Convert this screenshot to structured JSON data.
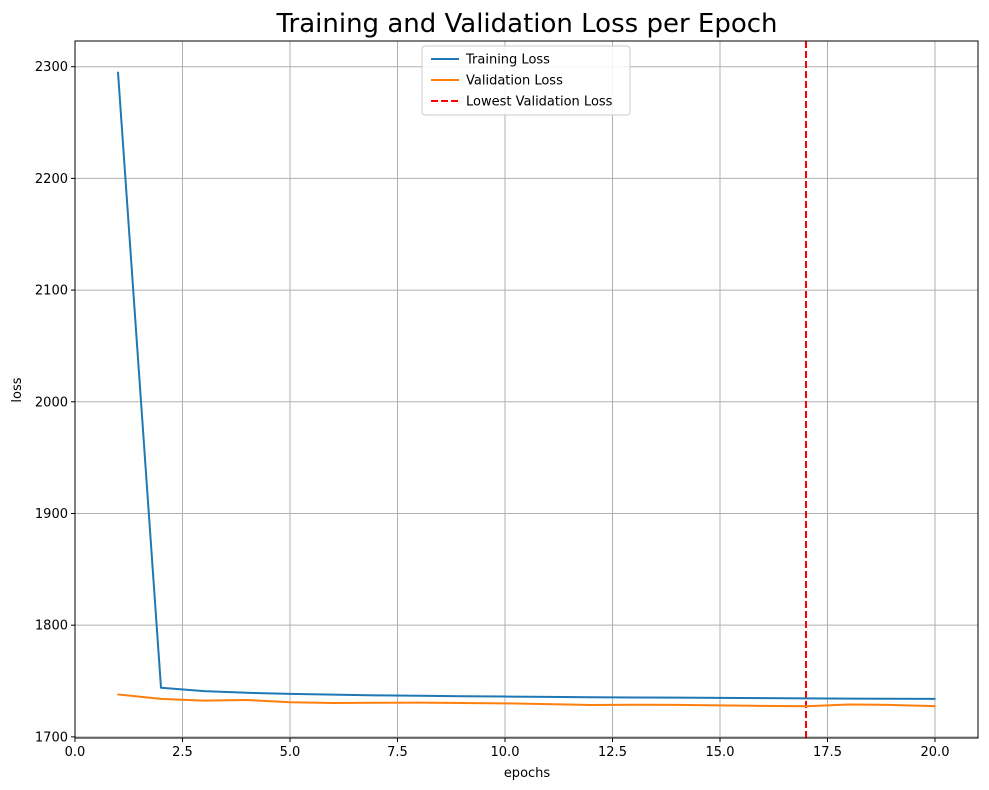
{
  "chart_data": {
    "type": "line",
    "title": "Training and Validation Loss per Epoch",
    "xlabel": "epochs",
    "ylabel": "loss",
    "xlim": [
      0.0,
      21.0
    ],
    "ylim": [
      1699,
      2323
    ],
    "xticks": [
      0.0,
      2.5,
      5.0,
      7.5,
      10.0,
      12.5,
      15.0,
      17.5,
      20.0
    ],
    "xtick_labels": [
      "0.0",
      "2.5",
      "5.0",
      "7.5",
      "10.0",
      "12.5",
      "15.0",
      "17.5",
      "20.0"
    ],
    "yticks": [
      1700,
      1800,
      1900,
      2000,
      2100,
      2200,
      2300
    ],
    "ytick_labels": [
      "1700",
      "1800",
      "1900",
      "2000",
      "2100",
      "2200",
      "2300"
    ],
    "grid": true,
    "legend_position": "upper-center",
    "x": [
      1,
      2,
      3,
      4,
      5,
      6,
      7,
      8,
      9,
      10,
      11,
      12,
      13,
      14,
      15,
      16,
      17,
      18,
      19,
      20
    ],
    "series": [
      {
        "name": "Training Loss",
        "color": "#1f77b4",
        "style": "solid",
        "values": [
          2295,
          1744,
          1741,
          1739.5,
          1738.5,
          1737.8,
          1737.2,
          1736.8,
          1736.4,
          1736.1,
          1735.8,
          1735.5,
          1735.3,
          1735.1,
          1734.9,
          1734.7,
          1734.5,
          1734.3,
          1734.1,
          1734
        ]
      },
      {
        "name": "Validation Loss",
        "color": "#ff7f0e",
        "style": "solid",
        "values": [
          1738,
          1734,
          1732.5,
          1733,
          1731,
          1730.3,
          1730.5,
          1730.7,
          1730.3,
          1730,
          1729.3,
          1728.6,
          1728.8,
          1728.7,
          1728.2,
          1727.8,
          1727.4,
          1729,
          1728.6,
          1727.5
        ]
      }
    ],
    "vlines": [
      {
        "name": "Lowest Validation Loss",
        "x": 17,
        "color": "#ff0000",
        "style": "dashed"
      }
    ]
  }
}
